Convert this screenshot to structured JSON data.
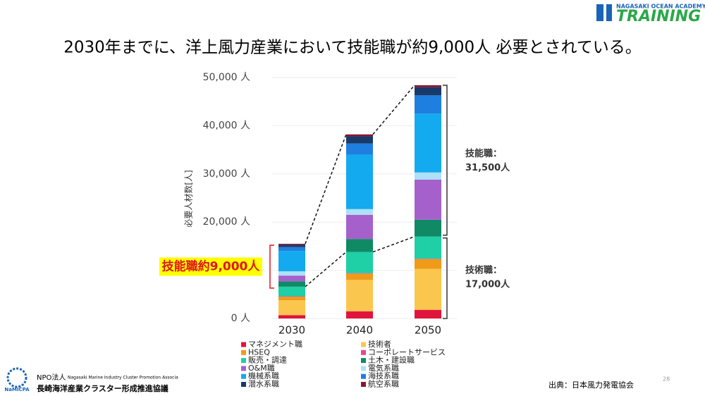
{
  "slide": {
    "brand_small": "NAGASAKI OCEAN ACADEMY",
    "brand": "TRAINING",
    "org_type": "NPO法人",
    "org_en": "Nagasaki Marine Industry Cluster Promotion Associa",
    "org_name": "長崎海洋産業クラスター形成推進協議",
    "org_abbr": "NaMICPA",
    "page_number": "28",
    "source": "出典：日本風力発電協会"
  },
  "chart_data": {
    "type": "stacked_bar",
    "title": "2030年までに、洋上風力産業において技能職が約9,000人 必要とされている。",
    "y_label": "必要人材数[人]",
    "categories": [
      "2030",
      "2040",
      "2050"
    ],
    "series": [
      {
        "name": "マネジメント職",
        "color": "#e0153d",
        "values": [
          700,
          1500,
          1800
        ]
      },
      {
        "name": "技術者",
        "color": "#fbc64e",
        "values": [
          3100,
          6500,
          8500
        ]
      },
      {
        "name": "HSEQ",
        "color": "#f09a1a",
        "values": [
          700,
          1300,
          2000
        ]
      },
      {
        "name": "コーポレートサービス",
        "color": "#e8468f",
        "values": [
          100,
          100,
          100
        ]
      },
      {
        "name": "販売・調達",
        "color": "#1fcfa6",
        "values": [
          2000,
          4400,
          4600
        ]
      },
      {
        "name": "土木・建設職",
        "color": "#0f8a64",
        "values": [
          1100,
          2700,
          3500
        ]
      },
      {
        "name": "O&M職",
        "color": "#a660cc",
        "values": [
          1200,
          5000,
          8300
        ]
      },
      {
        "name": "電気系職",
        "color": "#aee0f7",
        "values": [
          900,
          1200,
          1500
        ]
      },
      {
        "name": "機械系職",
        "color": "#13aaf0",
        "values": [
          4200,
          11300,
          12200
        ]
      },
      {
        "name": "海技系職",
        "color": "#1e7fe0",
        "values": [
          800,
          2300,
          3800
        ]
      },
      {
        "name": "潜水系職",
        "color": "#173a6b",
        "values": [
          500,
          1500,
          1700
        ]
      },
      {
        "name": "航空系職",
        "color": "#8a1530",
        "values": [
          200,
          400,
          400
        ]
      }
    ],
    "ylim": [
      0,
      50000
    ],
    "yticks": [
      {
        "value": 0,
        "label": "0 人"
      },
      {
        "value": 10000,
        "label": "10,000 人"
      },
      {
        "value": 20000,
        "label": "20,000 人"
      },
      {
        "value": 30000,
        "label": "30,000 人"
      },
      {
        "value": 40000,
        "label": "40,000 人"
      },
      {
        "value": 50000,
        "label": "50,000 人"
      }
    ],
    "grid": true,
    "legend": "bottom",
    "annotations": [
      "技能職：",
      "31,500人",
      "技術職：",
      "17,000人",
      "技能職約9,000人"
    ]
  }
}
